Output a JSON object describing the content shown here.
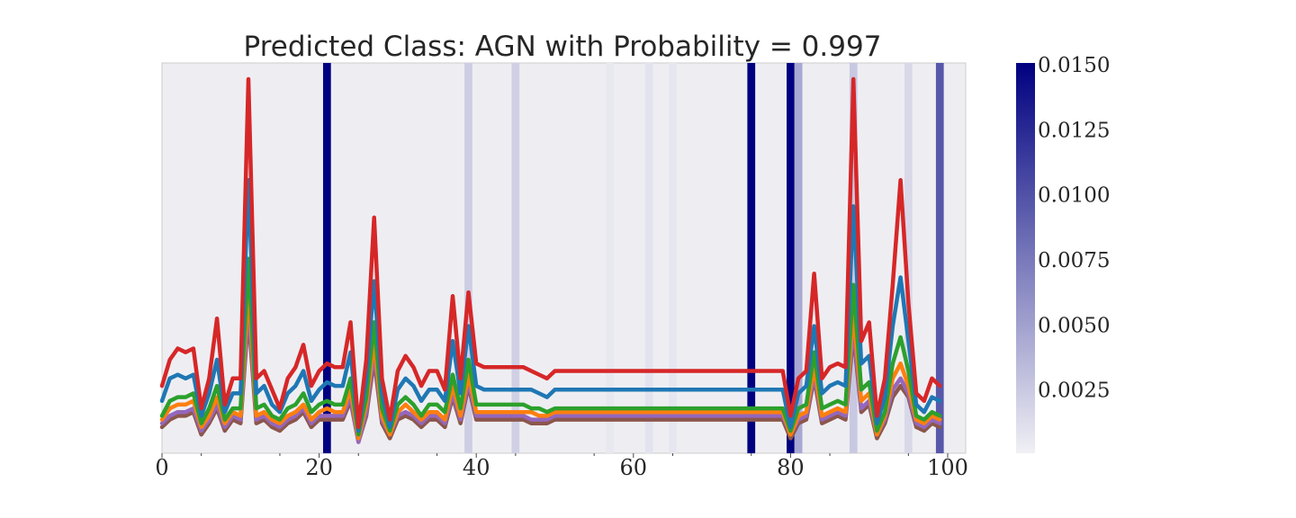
{
  "chart_data": {
    "type": "line",
    "title": "Predicted Class: AGN with Probability = 0.997",
    "xlabel": "",
    "ylabel": "",
    "xlim": [
      0,
      102
    ],
    "x_ticks": [
      0,
      20,
      40,
      60,
      80,
      100
    ],
    "x_tick_labels": [
      "0",
      "20",
      "40",
      "60",
      "80",
      "100"
    ],
    "y_ticks_shown": false,
    "grid": false,
    "legend": "none",
    "background_color": "#eeeef2",
    "colorbar": {
      "min": 0,
      "max": 0.015,
      "ticks": [
        0.0025,
        0.005,
        0.0075,
        0.01,
        0.0125,
        0.015
      ],
      "tick_labels": [
        "0.0025",
        "0.0050",
        "0.0075",
        "0.0100",
        "0.0125",
        "0.0150"
      ],
      "color_low": "#f0f0f5",
      "color_high": "#000080"
    },
    "attention_bands": [
      {
        "x": 21,
        "value": 0.015
      },
      {
        "x": 39,
        "value": 0.0022
      },
      {
        "x": 45,
        "value": 0.002
      },
      {
        "x": 57,
        "value": 0.0005
      },
      {
        "x": 62,
        "value": 0.0008
      },
      {
        "x": 65,
        "value": 0.0006
      },
      {
        "x": 75,
        "value": 0.015
      },
      {
        "x": 80,
        "value": 0.015
      },
      {
        "x": 81,
        "value": 0.0045
      },
      {
        "x": 88,
        "value": 0.0025
      },
      {
        "x": 95,
        "value": 0.0015
      },
      {
        "x": 99,
        "value": 0.0095
      }
    ],
    "series_colors": [
      "#d62728",
      "#1f77b4",
      "#2ca02c",
      "#ff7f0e",
      "#9467bd",
      "#8c564b"
    ],
    "series": [
      {
        "values": [
          0.18,
          0.25,
          0.28,
          0.27,
          0.28,
          0.12,
          0.2,
          0.36,
          0.13,
          0.2,
          0.2,
          1.0,
          0.2,
          0.22,
          0.17,
          0.12,
          0.2,
          0.23,
          0.29,
          0.18,
          0.22,
          0.24,
          0.23,
          0.23,
          0.35,
          0.07,
          0.25,
          0.63,
          0.2,
          0.09,
          0.22,
          0.26,
          0.23,
          0.18,
          0.22,
          0.22,
          0.17,
          0.42,
          0.2,
          0.43,
          0.24,
          0.23,
          0.23,
          0.23,
          0.23,
          0.23,
          0.23,
          0.22,
          0.21,
          0.2,
          0.22,
          0.22,
          0.22,
          0.22,
          0.22,
          0.22,
          0.22,
          0.22,
          0.22,
          0.22,
          0.22,
          0.22,
          0.22,
          0.22,
          0.22,
          0.22,
          0.22,
          0.22,
          0.22,
          0.22,
          0.22,
          0.22,
          0.22,
          0.22,
          0.22,
          0.22,
          0.22,
          0.22,
          0.22,
          0.22,
          0.1,
          0.2,
          0.22,
          0.48,
          0.2,
          0.23,
          0.24,
          0.23,
          1.0,
          0.3,
          0.35,
          0.1,
          0.2,
          0.45,
          0.73,
          0.4,
          0.16,
          0.14,
          0.2,
          0.18
        ]
      },
      {
        "values": [
          0.14,
          0.2,
          0.21,
          0.2,
          0.21,
          0.1,
          0.16,
          0.25,
          0.11,
          0.16,
          0.16,
          0.73,
          0.16,
          0.18,
          0.13,
          0.11,
          0.16,
          0.18,
          0.22,
          0.14,
          0.17,
          0.19,
          0.18,
          0.18,
          0.27,
          0.06,
          0.2,
          0.46,
          0.16,
          0.07,
          0.17,
          0.2,
          0.18,
          0.14,
          0.17,
          0.17,
          0.14,
          0.3,
          0.16,
          0.34,
          0.18,
          0.17,
          0.17,
          0.17,
          0.17,
          0.17,
          0.17,
          0.17,
          0.16,
          0.15,
          0.17,
          0.17,
          0.17,
          0.17,
          0.17,
          0.17,
          0.17,
          0.17,
          0.17,
          0.17,
          0.17,
          0.17,
          0.17,
          0.17,
          0.17,
          0.17,
          0.17,
          0.17,
          0.17,
          0.17,
          0.17,
          0.17,
          0.17,
          0.17,
          0.17,
          0.17,
          0.17,
          0.17,
          0.17,
          0.17,
          0.07,
          0.16,
          0.18,
          0.34,
          0.16,
          0.18,
          0.19,
          0.18,
          0.66,
          0.24,
          0.26,
          0.08,
          0.15,
          0.34,
          0.47,
          0.3,
          0.13,
          0.11,
          0.15,
          0.14
        ]
      },
      {
        "values": [
          0.1,
          0.14,
          0.15,
          0.15,
          0.16,
          0.08,
          0.12,
          0.18,
          0.09,
          0.12,
          0.12,
          0.52,
          0.12,
          0.13,
          0.1,
          0.09,
          0.12,
          0.13,
          0.16,
          0.11,
          0.13,
          0.14,
          0.13,
          0.13,
          0.2,
          0.05,
          0.15,
          0.35,
          0.12,
          0.06,
          0.13,
          0.15,
          0.13,
          0.1,
          0.13,
          0.13,
          0.11,
          0.21,
          0.12,
          0.25,
          0.13,
          0.13,
          0.13,
          0.13,
          0.13,
          0.13,
          0.13,
          0.12,
          0.12,
          0.11,
          0.12,
          0.12,
          0.12,
          0.12,
          0.12,
          0.12,
          0.12,
          0.12,
          0.12,
          0.12,
          0.12,
          0.12,
          0.12,
          0.12,
          0.12,
          0.12,
          0.12,
          0.12,
          0.12,
          0.12,
          0.12,
          0.12,
          0.12,
          0.12,
          0.12,
          0.12,
          0.12,
          0.12,
          0.12,
          0.12,
          0.06,
          0.12,
          0.13,
          0.27,
          0.12,
          0.13,
          0.14,
          0.13,
          0.45,
          0.17,
          0.19,
          0.06,
          0.11,
          0.24,
          0.31,
          0.22,
          0.1,
          0.09,
          0.11,
          0.1
        ]
      },
      {
        "values": [
          0.09,
          0.12,
          0.13,
          0.13,
          0.14,
          0.07,
          0.1,
          0.15,
          0.08,
          0.11,
          0.1,
          0.45,
          0.1,
          0.11,
          0.09,
          0.08,
          0.1,
          0.11,
          0.13,
          0.09,
          0.11,
          0.12,
          0.11,
          0.11,
          0.17,
          0.04,
          0.13,
          0.3,
          0.1,
          0.05,
          0.11,
          0.13,
          0.11,
          0.09,
          0.11,
          0.11,
          0.09,
          0.18,
          0.1,
          0.21,
          0.11,
          0.11,
          0.11,
          0.11,
          0.11,
          0.11,
          0.11,
          0.11,
          0.1,
          0.1,
          0.11,
          0.11,
          0.11,
          0.11,
          0.11,
          0.11,
          0.11,
          0.11,
          0.11,
          0.11,
          0.11,
          0.11,
          0.11,
          0.11,
          0.11,
          0.11,
          0.11,
          0.11,
          0.11,
          0.11,
          0.11,
          0.11,
          0.11,
          0.11,
          0.11,
          0.11,
          0.11,
          0.11,
          0.11,
          0.11,
          0.05,
          0.1,
          0.11,
          0.23,
          0.1,
          0.11,
          0.12,
          0.11,
          0.38,
          0.14,
          0.16,
          0.05,
          0.1,
          0.2,
          0.24,
          0.18,
          0.09,
          0.08,
          0.1,
          0.09
        ]
      },
      {
        "values": [
          0.08,
          0.1,
          0.11,
          0.11,
          0.12,
          0.06,
          0.09,
          0.13,
          0.07,
          0.1,
          0.09,
          0.4,
          0.09,
          0.1,
          0.08,
          0.07,
          0.09,
          0.1,
          0.12,
          0.08,
          0.1,
          0.1,
          0.1,
          0.1,
          0.15,
          0.03,
          0.11,
          0.27,
          0.09,
          0.05,
          0.1,
          0.11,
          0.1,
          0.08,
          0.1,
          0.1,
          0.08,
          0.16,
          0.09,
          0.19,
          0.1,
          0.1,
          0.1,
          0.1,
          0.1,
          0.1,
          0.1,
          0.09,
          0.09,
          0.09,
          0.1,
          0.1,
          0.1,
          0.1,
          0.1,
          0.1,
          0.1,
          0.1,
          0.1,
          0.1,
          0.1,
          0.1,
          0.1,
          0.1,
          0.1,
          0.1,
          0.1,
          0.1,
          0.1,
          0.1,
          0.1,
          0.1,
          0.1,
          0.1,
          0.1,
          0.1,
          0.1,
          0.1,
          0.1,
          0.1,
          0.05,
          0.09,
          0.1,
          0.21,
          0.09,
          0.1,
          0.11,
          0.1,
          0.34,
          0.12,
          0.14,
          0.05,
          0.09,
          0.17,
          0.2,
          0.16,
          0.08,
          0.07,
          0.09,
          0.08
        ]
      },
      {
        "values": [
          0.07,
          0.09,
          0.1,
          0.1,
          0.11,
          0.05,
          0.08,
          0.12,
          0.06,
          0.09,
          0.08,
          0.37,
          0.08,
          0.09,
          0.07,
          0.06,
          0.08,
          0.09,
          0.11,
          0.07,
          0.09,
          0.09,
          0.09,
          0.09,
          0.14,
          0.03,
          0.1,
          0.25,
          0.08,
          0.04,
          0.09,
          0.1,
          0.09,
          0.07,
          0.09,
          0.09,
          0.07,
          0.15,
          0.08,
          0.18,
          0.09,
          0.09,
          0.09,
          0.09,
          0.09,
          0.09,
          0.09,
          0.08,
          0.08,
          0.08,
          0.09,
          0.09,
          0.09,
          0.09,
          0.09,
          0.09,
          0.09,
          0.09,
          0.09,
          0.09,
          0.09,
          0.09,
          0.09,
          0.09,
          0.09,
          0.09,
          0.09,
          0.09,
          0.09,
          0.09,
          0.09,
          0.09,
          0.09,
          0.09,
          0.09,
          0.09,
          0.09,
          0.09,
          0.09,
          0.09,
          0.04,
          0.08,
          0.09,
          0.2,
          0.08,
          0.09,
          0.1,
          0.09,
          0.32,
          0.11,
          0.13,
          0.04,
          0.08,
          0.15,
          0.18,
          0.15,
          0.07,
          0.06,
          0.08,
          0.07
        ]
      }
    ]
  }
}
